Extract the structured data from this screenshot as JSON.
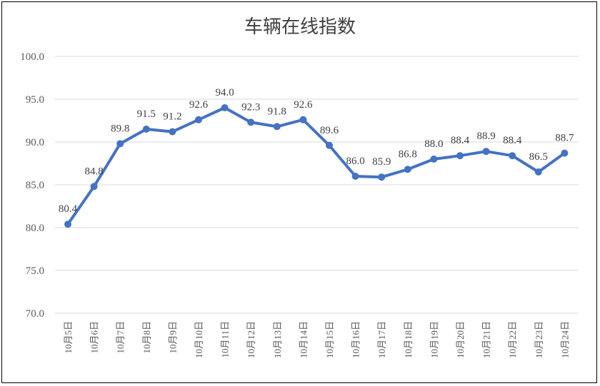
{
  "chart_data": {
    "type": "line",
    "title": "车辆在线指数",
    "xlabel": "",
    "ylabel": "",
    "categories": [
      "10月5日",
      "10月6日",
      "10月7日",
      "10月8日",
      "10月9日",
      "10月10日",
      "10月11日",
      "10月12日",
      "10月13日",
      "10月14日",
      "10月15日",
      "10月16日",
      "10月17日",
      "10月18日",
      "10月19日",
      "10月20日",
      "10月21日",
      "10月22日",
      "10月23日",
      "10月24日"
    ],
    "values": [
      80.4,
      84.8,
      89.8,
      91.5,
      91.2,
      92.6,
      94.0,
      92.3,
      91.8,
      92.6,
      89.6,
      86.0,
      85.9,
      86.8,
      88.0,
      88.4,
      88.9,
      88.4,
      86.5,
      88.7
    ],
    "value_labels": [
      "80.4",
      "84.8",
      "89.8",
      "91.5",
      "91.2",
      "92.6",
      "94.0",
      "92.3",
      "91.8",
      "92.6",
      "89.6",
      "86.0",
      "85.9",
      "86.8",
      "88.0",
      "88.4",
      "88.9",
      "88.4",
      "86.5",
      "88.7"
    ],
    "ylim": [
      70.0,
      100.0
    ],
    "yticks": [
      "70.0",
      "75.0",
      "80.0",
      "85.0",
      "90.0",
      "95.0",
      "100.0"
    ],
    "grid": true,
    "legend": "none",
    "line_color": "#4472c4"
  }
}
